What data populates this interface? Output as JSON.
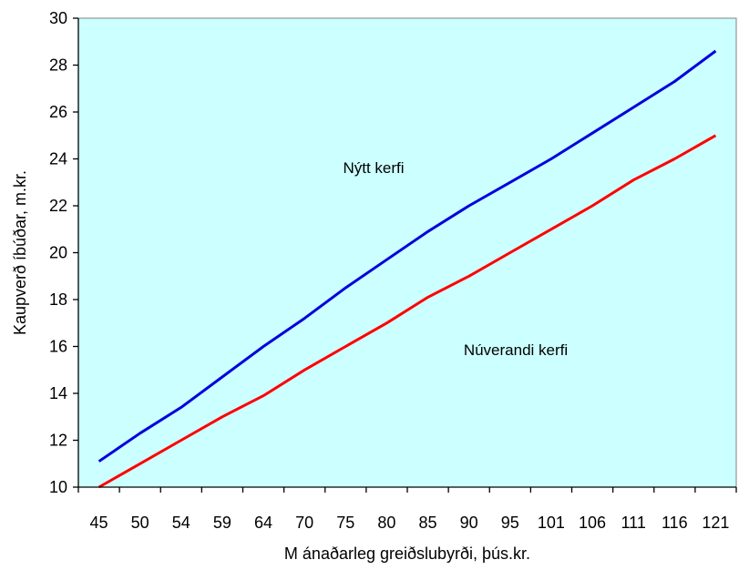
{
  "chart_data": {
    "type": "line",
    "title": "",
    "xlabel": "M ánaðarleg greiðslubyrði, þús.kr.",
    "ylabel": "Kaupverð íbúðar, m.kr.",
    "ylim": [
      10,
      30
    ],
    "yticks": [
      10,
      12,
      14,
      16,
      18,
      20,
      22,
      24,
      26,
      28,
      30
    ],
    "categories": [
      "45",
      "50",
      "54",
      "59",
      "64",
      "70",
      "75",
      "80",
      "85",
      "90",
      "95",
      "101",
      "106",
      "111",
      "116",
      "121"
    ],
    "grid": false,
    "legend": "none",
    "plot_background": "#CCFFFF",
    "series": [
      {
        "name": "Nýtt kerfi",
        "color": "#0000DD",
        "values": [
          11.1,
          12.3,
          13.4,
          14.7,
          16.0,
          17.2,
          18.5,
          19.7,
          20.9,
          22.0,
          23.0,
          24.0,
          25.1,
          26.2,
          27.3,
          28.6
        ]
      },
      {
        "name": "Núverandi kerfi",
        "color": "#FF0000",
        "values": [
          10.0,
          11.0,
          12.0,
          13.0,
          13.9,
          15.0,
          16.0,
          17.0,
          18.1,
          19.0,
          20.0,
          21.0,
          22.0,
          23.1,
          24.0,
          25.0
        ]
      }
    ],
    "annotations": [
      {
        "text": "Nýtt kerfi",
        "series": 0
      },
      {
        "text": "Núverandi kerfi",
        "series": 1
      }
    ]
  }
}
